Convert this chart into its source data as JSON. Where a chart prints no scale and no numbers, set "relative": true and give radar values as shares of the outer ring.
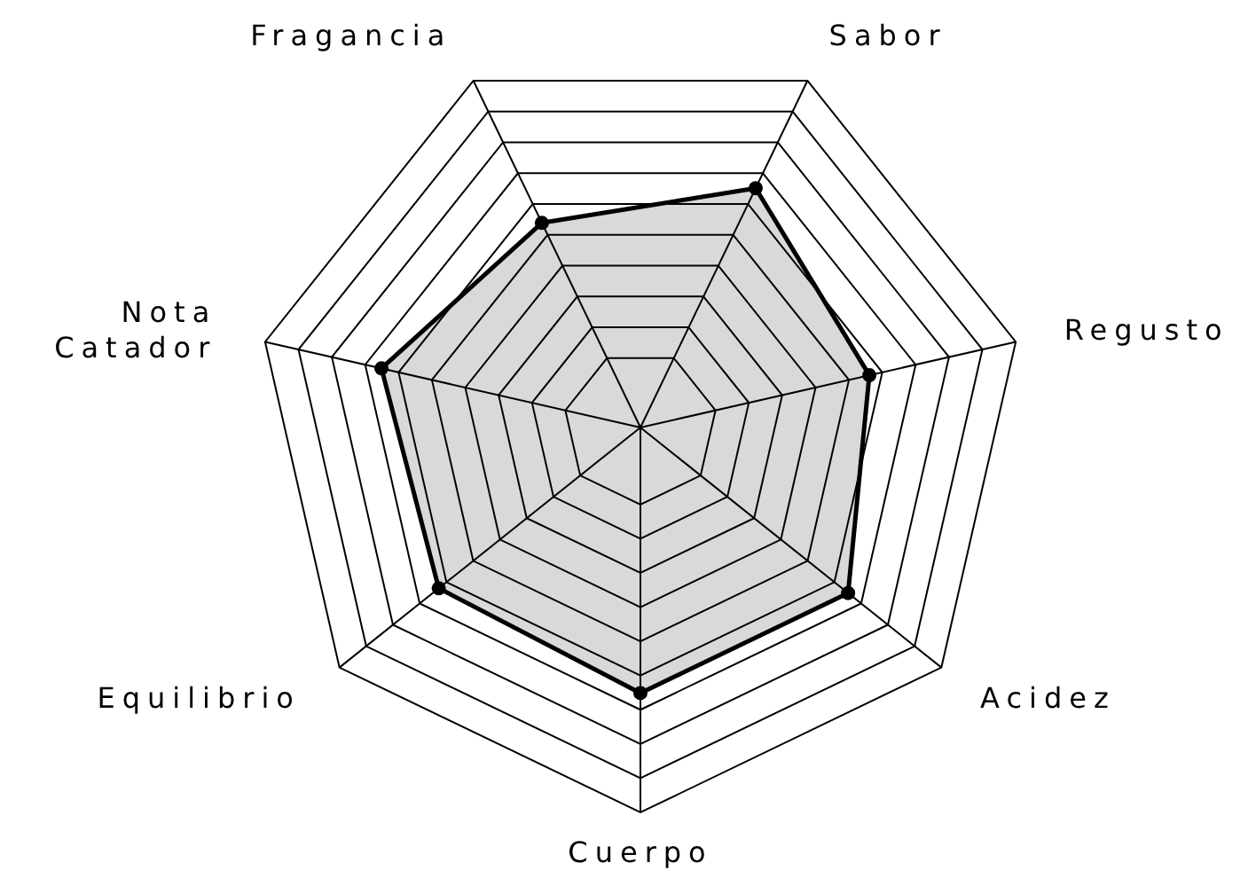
{
  "chart_data": {
    "type": "radar",
    "relative": true,
    "grid": true,
    "marker": "circle",
    "categories": [
      "Sabor",
      "Regusto",
      "Acidez",
      "Cuerpo",
      "Equilibrio",
      "Nota Catador",
      "Fragancia"
    ],
    "series": [
      {
        "color": "#000000",
        "values": [
          0.69,
          0.61,
          0.69,
          0.69,
          0.67,
          0.69,
          0.59
        ]
      }
    ]
  }
}
